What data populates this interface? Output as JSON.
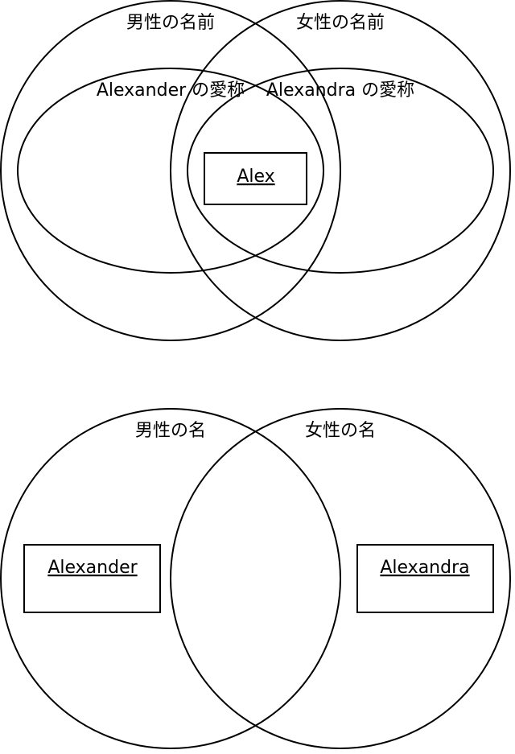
{
  "diagram1": {
    "male_names": "男性の名前",
    "female_names": "女性の名前",
    "alexander_nicknames": "Alexander の愛称",
    "alexandra_nicknames": "Alexandra の愛称",
    "shared_name": "Alex"
  },
  "diagram2": {
    "male_names": "男性の名",
    "female_names": "女性の名",
    "male_example": "Alexander",
    "female_example": "Alexandra"
  }
}
